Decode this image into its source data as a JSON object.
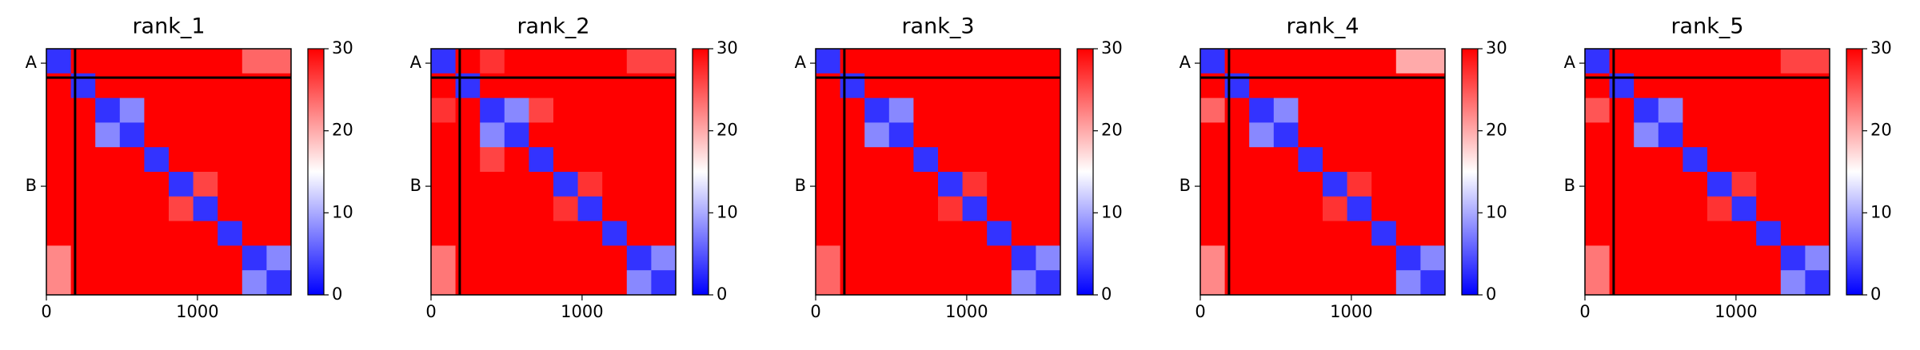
{
  "chart_data": [
    {
      "type": "heatmap",
      "title": "rank_1",
      "colormap": "bwr",
      "xlim": [
        0,
        1620
      ],
      "xticks": [
        0,
        1000
      ],
      "ylim": [
        1620,
        0
      ],
      "yticks": [
        {
          "value": 95,
          "label": "A"
        },
        {
          "value": 905,
          "label": "B"
        }
      ],
      "chain_breaks": [
        190
      ],
      "clim": [
        0,
        30
      ],
      "cticks": [
        0,
        10,
        20,
        30
      ],
      "z": [
        [
          3,
          30,
          30,
          30,
          30,
          30,
          30,
          30,
          24,
          24
        ],
        [
          30,
          3,
          30,
          30,
          30,
          30,
          30,
          30,
          30,
          30
        ],
        [
          30,
          30,
          3,
          8,
          30,
          30,
          30,
          30,
          30,
          30
        ],
        [
          30,
          30,
          8,
          3,
          30,
          30,
          30,
          30,
          30,
          30
        ],
        [
          30,
          30,
          30,
          30,
          3,
          30,
          30,
          30,
          30,
          30
        ],
        [
          30,
          30,
          30,
          30,
          30,
          3,
          26,
          30,
          30,
          30
        ],
        [
          30,
          30,
          30,
          30,
          30,
          26,
          3,
          30,
          30,
          30
        ],
        [
          30,
          30,
          30,
          30,
          30,
          30,
          30,
          3,
          30,
          30
        ],
        [
          22,
          30,
          30,
          30,
          30,
          30,
          30,
          30,
          3,
          8
        ],
        [
          22,
          30,
          30,
          30,
          30,
          30,
          30,
          30,
          8,
          3
        ]
      ]
    },
    {
      "type": "heatmap",
      "title": "rank_2",
      "colormap": "bwr",
      "xlim": [
        0,
        1620
      ],
      "xticks": [
        0,
        1000
      ],
      "ylim": [
        1620,
        0
      ],
      "yticks": [
        {
          "value": 95,
          "label": "A"
        },
        {
          "value": 905,
          "label": "B"
        }
      ],
      "chain_breaks": [
        190
      ],
      "clim": [
        0,
        30
      ],
      "cticks": [
        0,
        10,
        20,
        30
      ],
      "z": [
        [
          3,
          30,
          27,
          30,
          30,
          30,
          30,
          30,
          26,
          26
        ],
        [
          30,
          3,
          30,
          30,
          30,
          30,
          30,
          30,
          30,
          30
        ],
        [
          27,
          30,
          3,
          8,
          26,
          30,
          30,
          30,
          30,
          30
        ],
        [
          30,
          30,
          8,
          3,
          30,
          30,
          30,
          30,
          30,
          30
        ],
        [
          30,
          30,
          26,
          30,
          3,
          30,
          30,
          30,
          30,
          30
        ],
        [
          30,
          30,
          30,
          30,
          30,
          3,
          27,
          30,
          30,
          30
        ],
        [
          30,
          30,
          30,
          30,
          30,
          27,
          3,
          30,
          30,
          30
        ],
        [
          30,
          30,
          30,
          30,
          30,
          30,
          30,
          3,
          30,
          30
        ],
        [
          23,
          30,
          30,
          30,
          30,
          30,
          30,
          30,
          3,
          8
        ],
        [
          23,
          30,
          30,
          30,
          30,
          30,
          30,
          30,
          8,
          3
        ]
      ]
    },
    {
      "type": "heatmap",
      "title": "rank_3",
      "colormap": "bwr",
      "xlim": [
        0,
        1620
      ],
      "xticks": [
        0,
        1000
      ],
      "ylim": [
        1620,
        0
      ],
      "yticks": [
        {
          "value": 95,
          "label": "A"
        },
        {
          "value": 905,
          "label": "B"
        }
      ],
      "chain_breaks": [
        190
      ],
      "clim": [
        0,
        30
      ],
      "cticks": [
        0,
        10,
        20,
        30
      ],
      "z": [
        [
          3,
          30,
          30,
          30,
          30,
          30,
          30,
          30,
          30,
          30
        ],
        [
          30,
          3,
          30,
          30,
          30,
          30,
          30,
          30,
          30,
          30
        ],
        [
          30,
          30,
          3,
          8,
          30,
          30,
          30,
          30,
          30,
          30
        ],
        [
          30,
          30,
          8,
          3,
          30,
          30,
          30,
          30,
          30,
          30
        ],
        [
          30,
          30,
          30,
          30,
          3,
          30,
          30,
          30,
          30,
          30
        ],
        [
          30,
          30,
          30,
          30,
          30,
          3,
          27,
          30,
          30,
          30
        ],
        [
          30,
          30,
          30,
          30,
          30,
          27,
          3,
          30,
          30,
          30
        ],
        [
          30,
          30,
          30,
          30,
          30,
          30,
          30,
          3,
          30,
          30
        ],
        [
          24,
          30,
          30,
          30,
          30,
          30,
          30,
          30,
          3,
          8
        ],
        [
          24,
          30,
          30,
          30,
          30,
          30,
          30,
          30,
          8,
          3
        ]
      ]
    },
    {
      "type": "heatmap",
      "title": "rank_4",
      "colormap": "bwr",
      "xlim": [
        0,
        1620
      ],
      "xticks": [
        0,
        1000
      ],
      "ylim": [
        1620,
        0
      ],
      "yticks": [
        {
          "value": 95,
          "label": "A"
        },
        {
          "value": 905,
          "label": "B"
        }
      ],
      "chain_breaks": [
        190
      ],
      "clim": [
        0,
        30
      ],
      "cticks": [
        0,
        10,
        20,
        30
      ],
      "z": [
        [
          3,
          30,
          30,
          30,
          30,
          30,
          30,
          30,
          20,
          20
        ],
        [
          30,
          3,
          30,
          30,
          30,
          30,
          30,
          30,
          30,
          30
        ],
        [
          24,
          30,
          3,
          8,
          30,
          30,
          30,
          30,
          30,
          30
        ],
        [
          30,
          30,
          8,
          3,
          30,
          30,
          30,
          30,
          30,
          30
        ],
        [
          30,
          30,
          30,
          30,
          3,
          30,
          30,
          30,
          30,
          30
        ],
        [
          30,
          30,
          30,
          30,
          30,
          3,
          27,
          30,
          30,
          30
        ],
        [
          30,
          30,
          30,
          30,
          30,
          27,
          3,
          30,
          30,
          30
        ],
        [
          30,
          30,
          30,
          30,
          30,
          30,
          30,
          3,
          30,
          30
        ],
        [
          22,
          30,
          30,
          30,
          30,
          30,
          30,
          30,
          3,
          8
        ],
        [
          22,
          30,
          30,
          30,
          30,
          30,
          30,
          30,
          8,
          3
        ]
      ]
    },
    {
      "type": "heatmap",
      "title": "rank_5",
      "colormap": "bwr",
      "xlim": [
        0,
        1620
      ],
      "xticks": [
        0,
        1000
      ],
      "ylim": [
        1620,
        0
      ],
      "yticks": [
        {
          "value": 95,
          "label": "A"
        },
        {
          "value": 905,
          "label": "B"
        }
      ],
      "chain_breaks": [
        190
      ],
      "clim": [
        0,
        30
      ],
      "cticks": [
        0,
        10,
        20,
        30
      ],
      "z": [
        [
          3,
          30,
          30,
          30,
          30,
          30,
          30,
          30,
          26,
          26
        ],
        [
          30,
          3,
          30,
          30,
          30,
          30,
          30,
          30,
          30,
          30
        ],
        [
          25,
          30,
          3,
          8,
          30,
          30,
          30,
          30,
          30,
          30
        ],
        [
          30,
          30,
          8,
          3,
          30,
          30,
          30,
          30,
          30,
          30
        ],
        [
          30,
          30,
          30,
          30,
          3,
          30,
          30,
          30,
          30,
          30
        ],
        [
          30,
          30,
          30,
          30,
          30,
          3,
          27,
          30,
          30,
          30
        ],
        [
          30,
          30,
          30,
          30,
          30,
          27,
          3,
          30,
          30,
          30
        ],
        [
          30,
          30,
          30,
          30,
          30,
          30,
          30,
          3,
          30,
          30
        ],
        [
          23,
          30,
          30,
          30,
          30,
          30,
          30,
          30,
          3,
          8
        ],
        [
          23,
          30,
          30,
          30,
          30,
          30,
          30,
          30,
          8,
          3
        ]
      ]
    }
  ]
}
